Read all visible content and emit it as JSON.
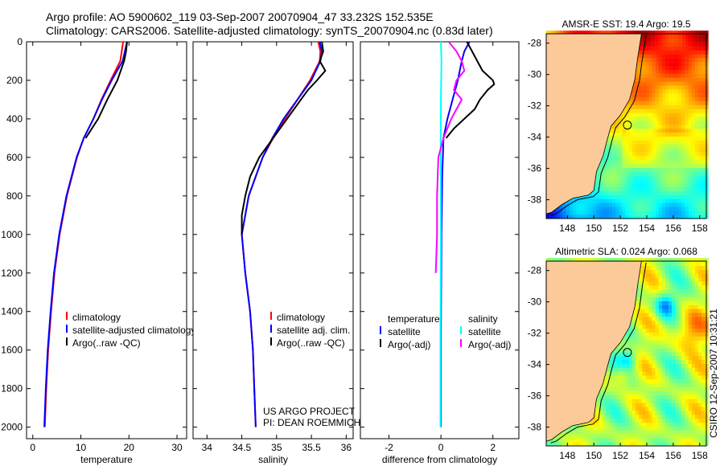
{
  "title_line1": "Argo profile: AO 5900602_119 03-Sep-2007 20070904_47 33.232S 152.535E",
  "title_line2": "Climatology: CARS2006. Satellite-adjusted climatology: synTS_20070904.nc (0.83d later)",
  "stamp": "CSIRO 12-Sep-2007 10:31:21",
  "credit_line1": "US ARGO PROJECT",
  "credit_line2": "PI: DEAN ROEMMICH",
  "chart_data": [
    {
      "type": "line",
      "xlabel": "temperature",
      "xlim": [
        -1.3,
        32
      ],
      "ylim": [
        0,
        2060
      ],
      "xticks": [
        0,
        10,
        20,
        30
      ],
      "yticks": [
        0,
        200,
        400,
        600,
        800,
        1000,
        1200,
        1400,
        1600,
        1800,
        2000
      ],
      "legend": [
        "climatology",
        "satellite-adjusted climatology",
        "Argo(..raw -QC)"
      ],
      "series": [
        {
          "name": "climatology",
          "color": "#ff0000",
          "depth": [
            0,
            100,
            200,
            300,
            400,
            500,
            600,
            800,
            1000,
            1200,
            1400,
            1600,
            1800,
            2000
          ],
          "values": [
            18.8,
            18.2,
            16.2,
            14.3,
            12.6,
            10.6,
            9.2,
            7.1,
            5.6,
            4.5,
            3.8,
            3.2,
            2.8,
            2.5
          ]
        },
        {
          "name": "satellite-adjusted climatology",
          "color": "#0000ff",
          "depth": [
            0,
            100,
            200,
            300,
            400,
            500,
            600,
            800,
            1000,
            1200,
            1400,
            1600,
            1800,
            2000
          ],
          "values": [
            19.6,
            18.7,
            16.4,
            14.4,
            12.6,
            10.6,
            9.1,
            7.0,
            5.5,
            4.4,
            3.7,
            3.1,
            2.7,
            2.4
          ]
        },
        {
          "name": "Argo(..raw -QC)",
          "color": "#000000",
          "depth": [
            0,
            50,
            100,
            200,
            300,
            400,
            500
          ],
          "values": [
            19.6,
            19.4,
            19.0,
            17.6,
            15.5,
            13.6,
            11.0
          ]
        }
      ]
    },
    {
      "type": "line",
      "xlabel": "salinity",
      "xlim": [
        33.8,
        36.1
      ],
      "ylim": [
        0,
        2060
      ],
      "xticks": [
        34,
        34.5,
        35,
        35.5,
        36
      ],
      "legend": [
        "climatology",
        "satellite adj. clim.",
        "Argo(..raw -QC)"
      ],
      "series": [
        {
          "name": "climatology",
          "color": "#ff0000",
          "depth": [
            0,
            50,
            100,
            200,
            300,
            400,
            500,
            600,
            800,
            1000,
            1200,
            1400,
            1600,
            1800,
            2000
          ],
          "values": [
            35.6,
            35.63,
            35.62,
            35.48,
            35.3,
            35.12,
            34.95,
            34.8,
            34.6,
            34.5,
            34.55,
            34.62,
            34.66,
            34.68,
            34.7
          ]
        },
        {
          "name": "satellite adj. clim.",
          "color": "#0000ff",
          "depth": [
            0,
            50,
            100,
            200,
            300,
            400,
            500,
            600,
            800,
            1000,
            1200,
            1400,
            1600,
            1800,
            2000
          ],
          "values": [
            35.62,
            35.65,
            35.63,
            35.5,
            35.3,
            35.1,
            34.94,
            34.8,
            34.6,
            34.5,
            34.55,
            34.62,
            34.66,
            34.68,
            34.7
          ]
        },
        {
          "name": "Argo(..raw -QC)",
          "color": "#000000",
          "depth": [
            0,
            50,
            100,
            150,
            200,
            250,
            300,
            400,
            500,
            600,
            700,
            800,
            900,
            1000
          ],
          "values": [
            35.65,
            35.67,
            35.62,
            35.7,
            35.58,
            35.45,
            35.35,
            35.15,
            34.95,
            34.75,
            34.62,
            34.55,
            34.5,
            34.5
          ]
        }
      ]
    },
    {
      "type": "line",
      "xlabel": "difference from climatology",
      "xlim": [
        -3.1,
        3
      ],
      "ylim": [
        0,
        2060
      ],
      "xticks": [
        -2,
        0,
        2
      ],
      "legend_temperature_header": "temperature",
      "legend_salinity_header": "salinity",
      "legend": [
        "satellite",
        "Argo(-adj)",
        "satellite",
        "Argo(-adj)"
      ],
      "series": [
        {
          "name": "temperature satellite",
          "color": "#0000ff",
          "depth": [
            0,
            50,
            100,
            200,
            300,
            400,
            500,
            700,
            1000,
            1500,
            2000
          ],
          "values": [
            1.1,
            0.9,
            0.8,
            0.65,
            0.45,
            0.25,
            0.1,
            0.05,
            0.02,
            0.0,
            0.0
          ]
        },
        {
          "name": "temperature Argo(-adj)",
          "color": "#000000",
          "depth": [
            0,
            50,
            100,
            150,
            200,
            220,
            250,
            300,
            350,
            400,
            450,
            500
          ],
          "values": [
            1.0,
            1.2,
            1.4,
            1.6,
            2.0,
            2.05,
            1.8,
            1.5,
            1.3,
            0.9,
            0.5,
            0.2
          ]
        },
        {
          "name": "salinity satellite",
          "color": "#00ffff",
          "depth": [
            0,
            100,
            300,
            600,
            1000,
            1500,
            2000
          ],
          "values": [
            0.0,
            0.02,
            0.0,
            -0.01,
            0.0,
            -0.02,
            -0.02
          ]
        },
        {
          "name": "salinity Argo(-adj)",
          "color": "#ff00ff",
          "depth": [
            0,
            50,
            100,
            150,
            200,
            250,
            300,
            350,
            400,
            500,
            600,
            800,
            1000,
            1200
          ],
          "values": [
            0.3,
            0.6,
            0.8,
            0.9,
            0.6,
            0.5,
            0.8,
            0.6,
            0.4,
            0.1,
            -0.1,
            -0.15,
            -0.15,
            -0.2
          ]
        }
      ]
    },
    {
      "type": "heatmap",
      "title": "AMSR-E SST: 19.4  Argo: 19.5",
      "xlim": [
        146.4,
        158.5
      ],
      "ylim": [
        -39.2,
        -27.4
      ],
      "xticks": [
        148,
        150,
        152,
        154,
        156,
        158
      ],
      "yticks": [
        -28,
        -30,
        -32,
        -34,
        -36,
        -38
      ],
      "float_position": [
        152.535,
        -33.232
      ],
      "colormap": "jet"
    },
    {
      "type": "heatmap",
      "title": "Altimetric SLA: 0.024  Argo: 0.068",
      "xlim": [
        146.4,
        158.5
      ],
      "ylim": [
        -39.2,
        -27.4
      ],
      "xticks": [
        148,
        150,
        152,
        154,
        156,
        158
      ],
      "yticks": [
        -28,
        -30,
        -32,
        -34,
        -36,
        -38
      ],
      "float_position": [
        152.535,
        -33.232
      ],
      "colormap": "jet"
    }
  ]
}
